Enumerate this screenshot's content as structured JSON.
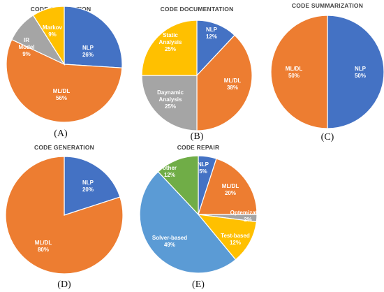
{
  "colors": {
    "blue": "#4472C4",
    "orange": "#ED7D31",
    "gray": "#A5A5A5",
    "yellow": "#FFC000",
    "lightblue": "#5B9BD5",
    "green": "#70AD47"
  },
  "chart_data": [
    {
      "type": "pie",
      "title": "CODE COMPLETION",
      "caption": "(A)",
      "slices": [
        {
          "label": "NLP",
          "pct": "26%",
          "value": 26,
          "color": "#4472C4"
        },
        {
          "label": "ML/DL",
          "pct": "56%",
          "value": 56,
          "color": "#ED7D31"
        },
        {
          "label": "IR Model",
          "pct": "9%",
          "value": 9,
          "color": "#A5A5A5"
        },
        {
          "label": "Markov",
          "pct": "9%",
          "value": 9,
          "color": "#FFC000"
        }
      ]
    },
    {
      "type": "pie",
      "title": "CODE DOCUMENTATION",
      "caption": "(B)",
      "slices": [
        {
          "label": "NLP",
          "pct": "12%",
          "value": 12,
          "color": "#4472C4"
        },
        {
          "label": "ML/DL",
          "pct": "38%",
          "value": 38,
          "color": "#ED7D31"
        },
        {
          "label": "Daynamic Analysis",
          "pct": "25%",
          "value": 25,
          "color": "#A5A5A5"
        },
        {
          "label": "Static Analysis",
          "pct": "25%",
          "value": 25,
          "color": "#FFC000"
        }
      ]
    },
    {
      "type": "pie",
      "title": "CODE SUMMARIZATION",
      "caption": "(C)",
      "slices": [
        {
          "label": "NLP",
          "pct": "50%",
          "value": 50,
          "color": "#4472C4"
        },
        {
          "label": "ML/DL",
          "pct": "50%",
          "value": 50,
          "color": "#ED7D31"
        }
      ]
    },
    {
      "type": "pie",
      "title": "CODE GENERATION",
      "caption": "(D)",
      "slices": [
        {
          "label": "NLP",
          "pct": "20%",
          "value": 20,
          "color": "#4472C4"
        },
        {
          "label": "ML/DL",
          "pct": "80%",
          "value": 80,
          "color": "#ED7D31"
        }
      ]
    },
    {
      "type": "pie",
      "title": "CODE REPAIR",
      "caption": "(E)",
      "slices": [
        {
          "label": "NLP",
          "pct": "5%",
          "value": 5,
          "color": "#4472C4"
        },
        {
          "label": "ML/DL",
          "pct": "20%",
          "value": 20,
          "color": "#ED7D31"
        },
        {
          "label": "Optemization",
          "pct": "2%",
          "value": 2,
          "color": "#A5A5A5"
        },
        {
          "label": "Test-based",
          "pct": "12%",
          "value": 12,
          "color": "#FFC000"
        },
        {
          "label": "Solver-based",
          "pct": "49%",
          "value": 49,
          "color": "#5B9BD5"
        },
        {
          "label": "other",
          "pct": "12%",
          "value": 12,
          "color": "#70AD47"
        }
      ]
    }
  ]
}
